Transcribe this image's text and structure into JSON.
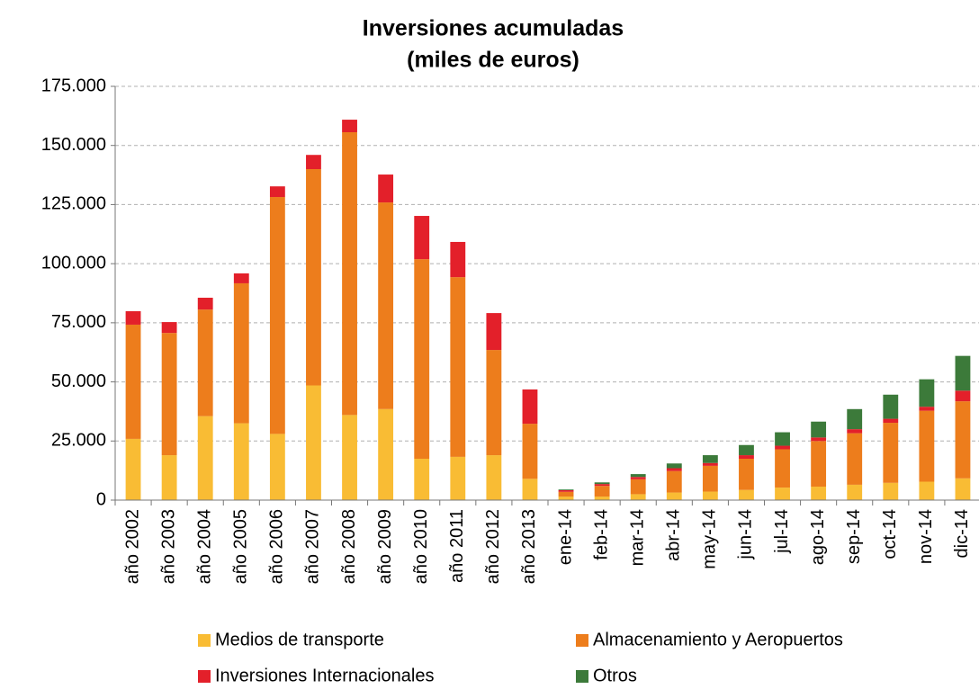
{
  "chart_data": {
    "type": "stacked_bar",
    "title": "Inversiones acumuladas",
    "subtitle": "(miles de euros)",
    "categories": [
      "año 2002",
      "año 2003",
      "año 2004",
      "año 2005",
      "año 2006",
      "año 2007",
      "año 2008",
      "año 2009",
      "año 2010",
      "año 2011",
      "año 2012",
      "año 2013",
      "ene-14",
      "feb-14",
      "mar-14",
      "abr-14",
      "may-14",
      "jun-14",
      "jul-14",
      "ago-14",
      "sep-14",
      "oct-14",
      "nov-14",
      "dic-14"
    ],
    "series": [
      {
        "name": "Medios de transporte",
        "color": "#f9bc34",
        "values": [
          25900,
          19000,
          35500,
          32500,
          28000,
          48500,
          36000,
          38500,
          17500,
          18300,
          19000,
          9000,
          1500,
          1500,
          2500,
          3200,
          3600,
          4300,
          5300,
          5700,
          6500,
          7300,
          7800,
          9200
        ]
      },
      {
        "name": "Almacenamiento y Aeropuertos",
        "color": "#ed7d1c",
        "values": [
          48300,
          51700,
          45100,
          59200,
          100200,
          91500,
          119600,
          87400,
          84400,
          76000,
          44500,
          23300,
          2000,
          4500,
          6300,
          9100,
          10900,
          13200,
          16200,
          19300,
          21800,
          25400,
          30000,
          32600
        ]
      },
      {
        "name": "Inversiones Internacionales",
        "color": "#e3202a",
        "values": [
          5700,
          4600,
          5000,
          4200,
          4500,
          6000,
          5300,
          11800,
          18300,
          14900,
          15600,
          14500,
          700,
          800,
          1000,
          1200,
          1200,
          1500,
          1500,
          1500,
          1700,
          1700,
          1700,
          4500
        ]
      },
      {
        "name": "Otros",
        "color": "#3c7a3a",
        "values": [
          0,
          0,
          0,
          0,
          0,
          0,
          0,
          0,
          0,
          0,
          0,
          0,
          300,
          700,
          1200,
          2000,
          3300,
          4300,
          5700,
          6700,
          8500,
          10200,
          11600,
          14700
        ]
      }
    ],
    "ylim": [
      0,
      175000
    ],
    "yticks": [
      0,
      {
        "value": 25000,
        "label": "25.000"
      },
      {
        "value": 50000,
        "label": "50.000"
      },
      {
        "value": 75000,
        "label": "75.000"
      },
      {
        "value": 100000,
        "label": "100.000"
      },
      {
        "value": 125000,
        "label": "125.000"
      },
      {
        "value": 150000,
        "label": "150.000"
      },
      {
        "value": 175000,
        "label": "175.000"
      }
    ],
    "grid": true,
    "legend": "bottom"
  }
}
